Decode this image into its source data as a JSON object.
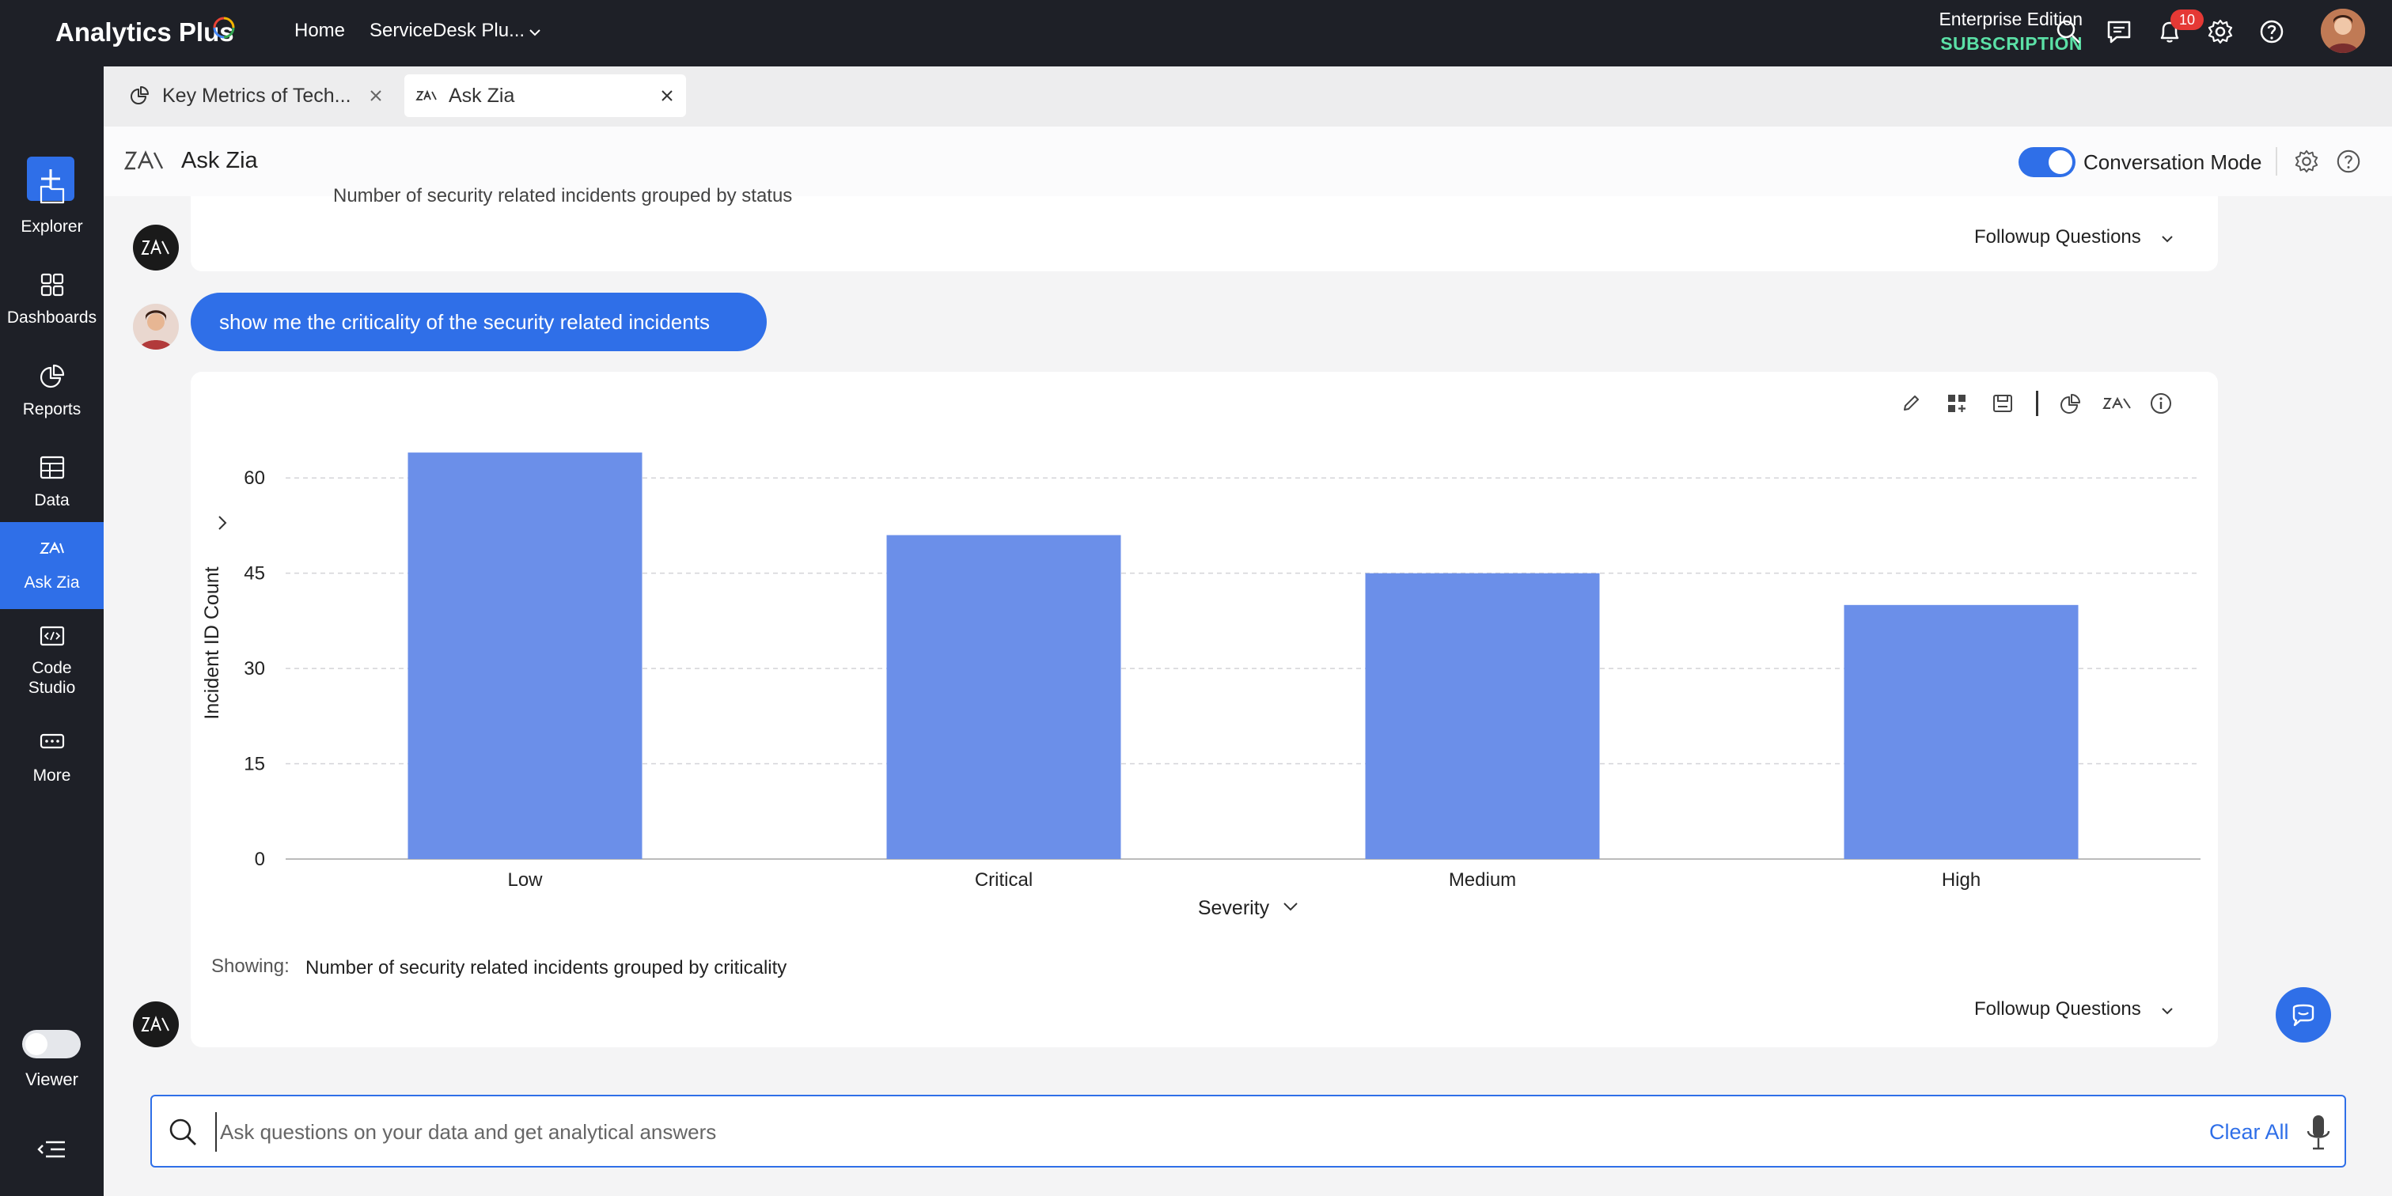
{
  "topbar": {
    "brand": "Analytics Plus",
    "nav_home": "Home",
    "nav_workspace": "ServiceDesk Plu...",
    "edition": "Enterprise Edition",
    "subscription": "SUBSCRIPTION",
    "notification_count": "10",
    "icons": [
      "search-icon",
      "chat-icon",
      "bell-icon",
      "gear-icon",
      "help-icon",
      "avatar"
    ]
  },
  "sidebar": {
    "items": [
      {
        "label": "Explorer",
        "icon": "folder-icon"
      },
      {
        "label": "Dashboards",
        "icon": "dashboard-icon"
      },
      {
        "label": "Reports",
        "icon": "pie-icon"
      },
      {
        "label": "Data",
        "icon": "table-icon"
      },
      {
        "label": "Ask Zia",
        "icon": "zia-icon",
        "active": true
      },
      {
        "label": "Code\nStudio",
        "icon": "code-icon"
      },
      {
        "label": "More",
        "icon": "more-icon"
      }
    ],
    "viewer_label": "Viewer"
  },
  "tabs": [
    {
      "label": "Key Metrics of Tech..."
    },
    {
      "label": "Ask Zia",
      "active": true
    }
  ],
  "panel": {
    "title": "Ask Zia",
    "conversation_mode_label": "Conversation Mode",
    "conversation_mode_on": true
  },
  "conversation": {
    "previous_cut_text": "Number of security related incidents grouped by status",
    "followup_label": "Followup Questions",
    "user_message": "show me the criticality of the security related incidents",
    "showing_label": "Showing:",
    "showing_value": "Number of security related incidents grouped by criticality"
  },
  "search": {
    "placeholder": "Ask questions on your data and get analytical answers",
    "value": "",
    "clear_label": "Clear All"
  },
  "colors": {
    "accent": "#2f6fe8",
    "bar": "#6b8fe9",
    "topbar": "#1e2027",
    "subscription": "#5be0a6"
  },
  "chart_data": {
    "type": "bar",
    "categories": [
      "Low",
      "Critical",
      "Medium",
      "High"
    ],
    "values": [
      64,
      51,
      45,
      40
    ],
    "xlabel": "Severity",
    "ylabel": "Incident ID Count",
    "yticks": [
      0,
      15,
      30,
      45,
      60
    ],
    "ylim": [
      0,
      68
    ],
    "grid": true
  }
}
